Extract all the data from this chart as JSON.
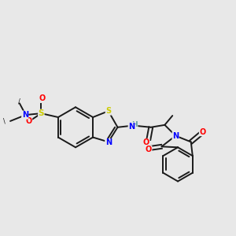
{
  "bg_color": "#e8e8e8",
  "bond_color": "#1a1a1a",
  "atom_colors": {
    "N": "#0000ff",
    "O": "#ff0000",
    "S": "#cccc00",
    "H": "#5f9ea0",
    "C": "#1a1a1a"
  }
}
